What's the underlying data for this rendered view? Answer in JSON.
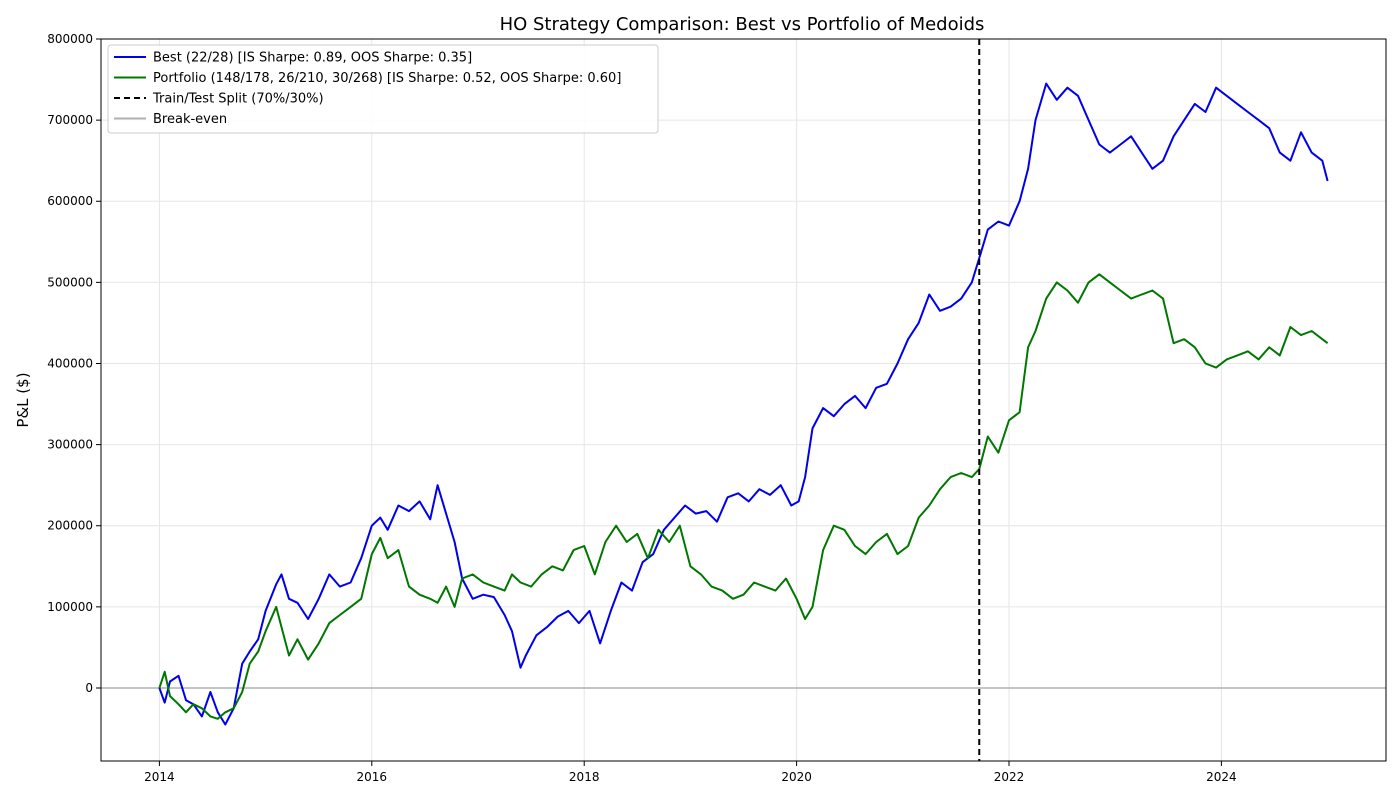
{
  "chart_data": {
    "type": "line",
    "title": "HO Strategy Comparison: Best vs Portfolio of Medoids",
    "xlabel": "",
    "ylabel": "P&L ($)",
    "xlim": [
      2013.45,
      2025.55
    ],
    "ylim": [
      -90000,
      800000
    ],
    "x_ticks": [
      2014,
      2016,
      2018,
      2020,
      2022,
      2024
    ],
    "x_tick_labels": [
      "2014",
      "2016",
      "2018",
      "2020",
      "2022",
      "2024"
    ],
    "y_ticks": [
      0,
      100000,
      200000,
      300000,
      400000,
      500000,
      600000,
      700000,
      800000
    ],
    "y_tick_labels": [
      "0",
      "100000",
      "200000",
      "300000",
      "400000",
      "500000",
      "600000",
      "700000",
      "800000"
    ],
    "grid": true,
    "legend_position": "top-left",
    "split_x": 2021.72,
    "split_label": "Train/Test Split (70%/30%)",
    "breakeven_y": 0,
    "breakeven_label": "Break-even",
    "colors": {
      "best": "#0000ee",
      "portfolio": "#007700",
      "split": "#000000",
      "breakeven": "#b0b0b0",
      "grid": "#e6e6e6"
    },
    "series": [
      {
        "key": "best",
        "name": "Best (22/28) [IS Sharpe: 0.89, OOS Sharpe: 0.35]",
        "x": [
          2014.0,
          2014.05,
          2014.1,
          2014.18,
          2014.25,
          2014.32,
          2014.4,
          2014.48,
          2014.55,
          2014.62,
          2014.7,
          2014.78,
          2014.85,
          2014.93,
          2015.0,
          2015.1,
          2015.15,
          2015.22,
          2015.3,
          2015.4,
          2015.5,
          2015.6,
          2015.7,
          2015.8,
          2015.9,
          2016.0,
          2016.08,
          2016.15,
          2016.25,
          2016.35,
          2016.45,
          2016.55,
          2016.62,
          2016.7,
          2016.78,
          2016.85,
          2016.95,
          2017.05,
          2017.15,
          2017.25,
          2017.32,
          2017.4,
          2017.45,
          2017.55,
          2017.65,
          2017.75,
          2017.85,
          2017.95,
          2018.05,
          2018.15,
          2018.25,
          2018.35,
          2018.45,
          2018.55,
          2018.65,
          2018.75,
          2018.85,
          2018.95,
          2019.05,
          2019.15,
          2019.25,
          2019.35,
          2019.45,
          2019.55,
          2019.65,
          2019.75,
          2019.85,
          2019.95,
          2020.02,
          2020.08,
          2020.15,
          2020.25,
          2020.35,
          2020.45,
          2020.55,
          2020.65,
          2020.75,
          2020.85,
          2020.95,
          2021.05,
          2021.15,
          2021.25,
          2021.35,
          2021.45,
          2021.55,
          2021.65,
          2021.72,
          2021.8,
          2021.9,
          2022.0,
          2022.1,
          2022.18,
          2022.25,
          2022.35,
          2022.45,
          2022.55,
          2022.65,
          2022.75,
          2022.85,
          2022.95,
          2023.05,
          2023.15,
          2023.25,
          2023.35,
          2023.45,
          2023.55,
          2023.65,
          2023.75,
          2023.85,
          2023.95,
          2024.05,
          2024.15,
          2024.25,
          2024.35,
          2024.45,
          2024.55,
          2024.65,
          2024.75,
          2024.85,
          2024.95,
          2025.0
        ],
        "y": [
          0,
          -18000,
          8000,
          15000,
          -15000,
          -20000,
          -35000,
          -5000,
          -30000,
          -45000,
          -25000,
          30000,
          45000,
          60000,
          95000,
          128000,
          140000,
          110000,
          105000,
          85000,
          110000,
          140000,
          125000,
          130000,
          160000,
          200000,
          210000,
          195000,
          225000,
          218000,
          230000,
          208000,
          250000,
          215000,
          180000,
          135000,
          110000,
          115000,
          112000,
          90000,
          70000,
          25000,
          40000,
          65000,
          75000,
          88000,
          95000,
          80000,
          95000,
          55000,
          95000,
          130000,
          120000,
          155000,
          165000,
          195000,
          210000,
          225000,
          215000,
          218000,
          205000,
          235000,
          240000,
          230000,
          245000,
          238000,
          250000,
          225000,
          230000,
          260000,
          320000,
          345000,
          335000,
          350000,
          360000,
          345000,
          370000,
          375000,
          400000,
          430000,
          450000,
          485000,
          465000,
          470000,
          480000,
          500000,
          530000,
          565000,
          575000,
          570000,
          600000,
          640000,
          700000,
          745000,
          725000,
          740000,
          730000,
          700000,
          670000,
          660000,
          670000,
          680000,
          660000,
          640000,
          650000,
          680000,
          700000,
          720000,
          710000,
          740000,
          730000,
          720000,
          710000,
          700000,
          690000,
          660000,
          650000,
          685000,
          660000,
          650000,
          625000
        ]
      },
      {
        "key": "portfolio",
        "name": "Portfolio (148/178, 26/210, 30/268) [IS Sharpe: 0.52, OOS Sharpe: 0.60]",
        "x": [
          2014.0,
          2014.05,
          2014.1,
          2014.18,
          2014.25,
          2014.32,
          2014.4,
          2014.48,
          2014.55,
          2014.62,
          2014.7,
          2014.78,
          2014.85,
          2014.93,
          2015.0,
          2015.1,
          2015.15,
          2015.22,
          2015.3,
          2015.4,
          2015.5,
          2015.6,
          2015.7,
          2015.8,
          2015.9,
          2016.0,
          2016.08,
          2016.15,
          2016.25,
          2016.35,
          2016.45,
          2016.55,
          2016.62,
          2016.7,
          2016.78,
          2016.85,
          2016.95,
          2017.05,
          2017.15,
          2017.25,
          2017.32,
          2017.4,
          2017.5,
          2017.6,
          2017.7,
          2017.8,
          2017.9,
          2018.0,
          2018.1,
          2018.2,
          2018.3,
          2018.4,
          2018.5,
          2018.6,
          2018.7,
          2018.8,
          2018.9,
          2019.0,
          2019.1,
          2019.2,
          2019.3,
          2019.4,
          2019.5,
          2019.6,
          2019.7,
          2019.8,
          2019.9,
          2020.0,
          2020.08,
          2020.15,
          2020.25,
          2020.35,
          2020.45,
          2020.55,
          2020.65,
          2020.75,
          2020.85,
          2020.95,
          2021.05,
          2021.15,
          2021.25,
          2021.35,
          2021.45,
          2021.55,
          2021.65,
          2021.72,
          2021.8,
          2021.9,
          2022.0,
          2022.1,
          2022.18,
          2022.25,
          2022.35,
          2022.45,
          2022.55,
          2022.65,
          2022.75,
          2022.85,
          2022.95,
          2023.05,
          2023.15,
          2023.25,
          2023.35,
          2023.45,
          2023.55,
          2023.65,
          2023.75,
          2023.85,
          2023.95,
          2024.05,
          2024.15,
          2024.25,
          2024.35,
          2024.45,
          2024.55,
          2024.65,
          2024.75,
          2024.85,
          2024.95,
          2025.0
        ],
        "y": [
          0,
          20000,
          -10000,
          -20000,
          -30000,
          -20000,
          -25000,
          -35000,
          -38000,
          -30000,
          -25000,
          -5000,
          30000,
          45000,
          70000,
          100000,
          75000,
          40000,
          60000,
          35000,
          55000,
          80000,
          90000,
          100000,
          110000,
          165000,
          185000,
          160000,
          170000,
          125000,
          115000,
          110000,
          105000,
          125000,
          100000,
          135000,
          140000,
          130000,
          125000,
          120000,
          140000,
          130000,
          125000,
          140000,
          150000,
          145000,
          170000,
          175000,
          140000,
          180000,
          200000,
          180000,
          190000,
          160000,
          195000,
          180000,
          200000,
          150000,
          140000,
          125000,
          120000,
          110000,
          115000,
          130000,
          125000,
          120000,
          135000,
          110000,
          85000,
          100000,
          170000,
          200000,
          195000,
          175000,
          165000,
          180000,
          190000,
          165000,
          175000,
          210000,
          225000,
          245000,
          260000,
          265000,
          260000,
          270000,
          310000,
          290000,
          330000,
          340000,
          420000,
          440000,
          480000,
          500000,
          490000,
          475000,
          500000,
          510000,
          500000,
          490000,
          480000,
          485000,
          490000,
          480000,
          425000,
          430000,
          420000,
          400000,
          395000,
          405000,
          410000,
          415000,
          405000,
          420000,
          410000,
          445000,
          435000,
          440000,
          430000,
          425000
        ]
      }
    ]
  }
}
